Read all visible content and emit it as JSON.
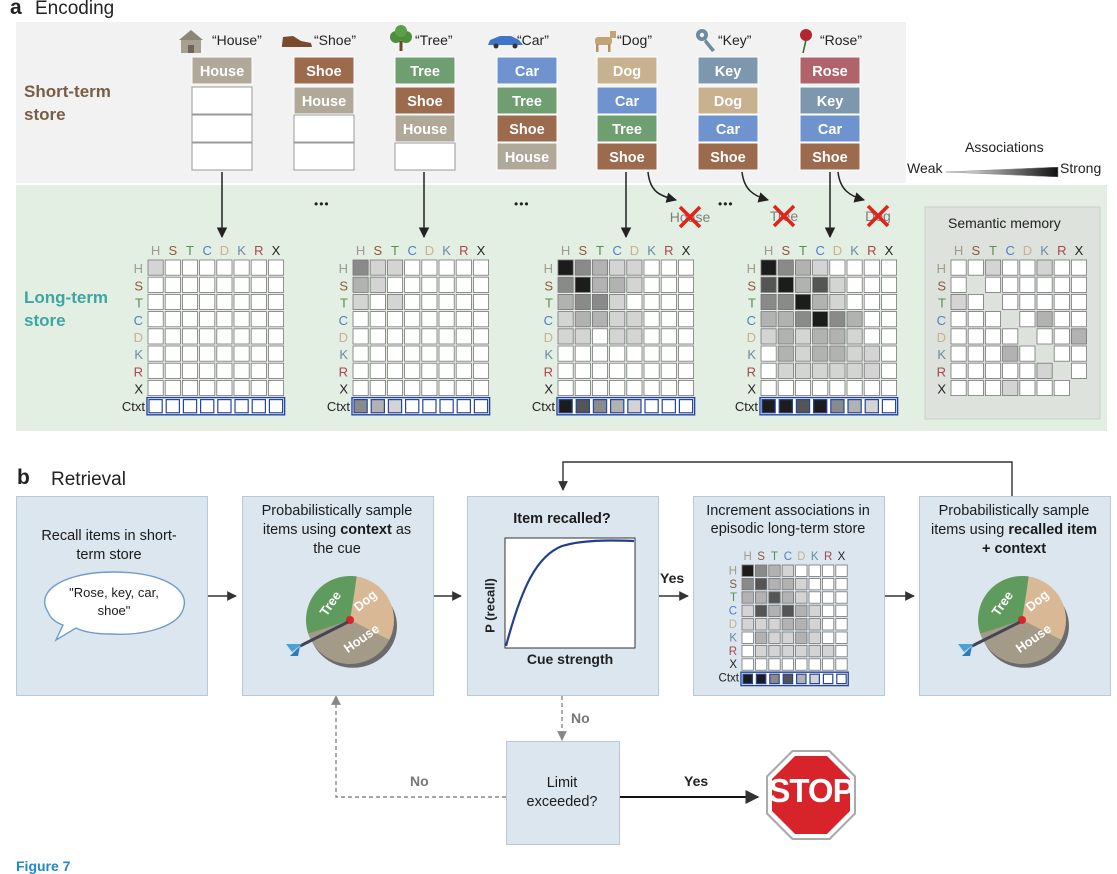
{
  "panel_a": {
    "letter": "a",
    "title": "Encoding"
  },
  "panel_b": {
    "letter": "b",
    "title": "Retrieval"
  },
  "short_term_label": "Short-term store",
  "long_term_label": "Long-term store",
  "associations": {
    "title": "Associations",
    "weak": "Weak",
    "strong": "Strong"
  },
  "ellipsis": "•••",
  "colors": {
    "House": "#b0a999",
    "Shoe": "#9c6a4c",
    "Tree": "#6f9f70",
    "Car": "#6f93cf",
    "Dog": "#c8b18e",
    "Key": "#7d98ae",
    "Rose": "#b0636a",
    "upper_bg": "#f2f2f2",
    "lower_bg": "#e4efe3",
    "box_bg": "#dbe6ef",
    "ctxt_border": "#26469c",
    "stop_red": "#d7242b"
  },
  "encoding_steps": [
    {
      "label": "“House”",
      "icon": "house-icon",
      "stack": [
        "House"
      ]
    },
    {
      "label": "“Shoe”",
      "icon": "shoe-icon",
      "stack": [
        "Shoe",
        "House"
      ]
    },
    {
      "label": "“Tree”",
      "icon": "tree-icon",
      "stack": [
        "Tree",
        "Shoe",
        "House"
      ]
    },
    {
      "label": "“Car”",
      "icon": "car-icon",
      "stack": [
        "Car",
        "Tree",
        "Shoe",
        "House"
      ]
    },
    {
      "label": "“Dog”",
      "icon": "dog-icon",
      "stack": [
        "Dog",
        "Car",
        "Tree",
        "Shoe"
      ]
    },
    {
      "label": "“Key”",
      "icon": "key-icon",
      "stack": [
        "Key",
        "Dog",
        "Car",
        "Shoe"
      ]
    },
    {
      "label": "“Rose”",
      "icon": "rose-icon",
      "stack": [
        "Rose",
        "Key",
        "Car",
        "Shoe"
      ]
    }
  ],
  "dropped_items": [
    "House",
    "Tree",
    "Dog"
  ],
  "matrix_letters": [
    "H",
    "S",
    "T",
    "C",
    "D",
    "K",
    "R",
    "X"
  ],
  "ctxt_label": "Ctxt",
  "semantic_memory_label": "Semantic memory",
  "retrieval": {
    "box1": "Recall items in short-term store",
    "speech": "\"Rose, key, car, shoe\"",
    "box2_pre": "Probabilistically sample items using ",
    "box2_bold": "context",
    "box2_post": " as the cue",
    "box3_title": "Item recalled?",
    "box3_ylabel": "P (recall)",
    "box3_xlabel": "Cue strength",
    "box4": "Increment associations in episodic long-term store",
    "box5_pre": "Probabilistically sample items using ",
    "box5_bold": "recalled item + context",
    "dart_slices": [
      "Tree",
      "Dog",
      "House"
    ],
    "yes": "Yes",
    "no": "No",
    "limit": "Limit exceeded?",
    "stop": "STOP"
  },
  "footer": "Figure 7"
}
